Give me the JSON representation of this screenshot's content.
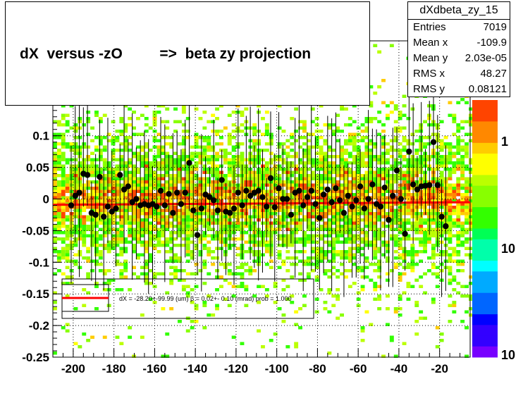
{
  "title": "dX  versus -zO         =>  beta zy projection",
  "stats": {
    "name": "dXdbeta_zy_15",
    "rows": [
      {
        "label": "Entries",
        "value": "7019"
      },
      {
        "label": "Mean x",
        "value": "-109.9"
      },
      {
        "label": "Mean y",
        "value": "2.03e-05"
      },
      {
        "label": "RMS x",
        "value": "48.27"
      },
      {
        "label": "RMS y",
        "value": "0.08121"
      }
    ]
  },
  "legend": {
    "text": "dX = -28.20+-99.99 (um) β =    0.02+- 0.10 (mrad) prob = 1.000"
  },
  "colors": {
    "points": "#000000",
    "fit_line": "#ff0000",
    "grid": "#000000",
    "palette": [
      "#7700ff",
      "#3300ff",
      "#0000ff",
      "#0066ff",
      "#00aaff",
      "#00ffff",
      "#00ffaa",
      "#00ff55",
      "#33ff00",
      "#88ff00",
      "#bbff00",
      "#ffff00",
      "#ffcc00",
      "#ff8800",
      "#ff4400"
    ]
  },
  "chart_data": {
    "type": "scatter",
    "xlim": [
      -210,
      -5
    ],
    "ylim": [
      -0.25,
      0.25
    ],
    "xticks": [
      -200,
      -180,
      -160,
      -140,
      -120,
      -100,
      -80,
      -60,
      -40,
      -20
    ],
    "xtick_labels": [
      "-200",
      "-180",
      "-160",
      "-140",
      "-120",
      "-100",
      "-80",
      "-60",
      "-40",
      "-20"
    ],
    "yticks": [
      -0.25,
      -0.2,
      -0.15,
      -0.1,
      -0.05,
      0,
      0.05,
      0.1
    ],
    "ytick_labels": [
      "-0.25",
      "-0.2",
      "-0.15",
      "-0.1",
      "-0.05",
      "0",
      "0.05",
      "0.1"
    ],
    "z_labels": [
      {
        "value": 1,
        "label": "1"
      },
      {
        "value": 0.1,
        "label": "10"
      },
      {
        "value": 0.01,
        "label": "10"
      }
    ],
    "grid": true,
    "profile_points": [
      [
        -201,
        -0.01
      ],
      [
        -199,
        0.005
      ],
      [
        -197,
        0.01
      ],
      [
        -195,
        0.04
      ],
      [
        -193,
        0.038
      ],
      [
        -191,
        -0.022
      ],
      [
        -189,
        -0.025
      ],
      [
        -187,
        0.035
      ],
      [
        -185,
        -0.028
      ],
      [
        -183,
        -0.012
      ],
      [
        -181,
        -0.02
      ],
      [
        -179,
        -0.015
      ],
      [
        -177,
        0.038
      ],
      [
        -175,
        0.015
      ],
      [
        -173,
        0.02
      ],
      [
        -171,
        -0.005
      ],
      [
        -169,
        0.0
      ],
      [
        -167,
        -0.01
      ],
      [
        -165,
        -0.008
      ],
      [
        -163,
        -0.01
      ],
      [
        -161,
        -0.008
      ],
      [
        -159,
        -0.012
      ],
      [
        -157,
        0.013
      ],
      [
        -155,
        -0.01
      ],
      [
        -153,
        0.008
      ],
      [
        -151,
        -0.022
      ],
      [
        -149,
        0.01
      ],
      [
        -147,
        -0.008
      ],
      [
        -145,
        0.01
      ],
      [
        -143,
        0.057
      ],
      [
        -141,
        -0.018
      ],
      [
        -139,
        -0.057
      ],
      [
        -137,
        -0.015
      ],
      [
        -135,
        0.007
      ],
      [
        -133,
        0.003
      ],
      [
        -131,
        -0.002
      ],
      [
        -129,
        -0.018
      ],
      [
        -127,
        0.03
      ],
      [
        -125,
        -0.02
      ],
      [
        -123,
        -0.022
      ],
      [
        -121,
        -0.015
      ],
      [
        -119,
        0.01
      ],
      [
        -117,
        -0.01
      ],
      [
        -115,
        0.013
      ],
      [
        -113,
        0.005
      ],
      [
        -111,
        0.01
      ],
      [
        -109,
        0.013
      ],
      [
        -107,
        0.003
      ],
      [
        -105,
        -0.012
      ],
      [
        -103,
        0.033
      ],
      [
        -101,
        -0.013
      ],
      [
        -99,
        0.017
      ],
      [
        -97,
        0.0
      ],
      [
        -95,
        0.0
      ],
      [
        -93,
        -0.025
      ],
      [
        -91,
        0.01
      ],
      [
        -89,
        0.013
      ],
      [
        -87,
        -0.01
      ],
      [
        -85,
        0.003
      ],
      [
        -83,
        0.013
      ],
      [
        -81,
        -0.008
      ],
      [
        -79,
        -0.03
      ],
      [
        -77,
        0.007
      ],
      [
        -75,
        0.015
      ],
      [
        -73,
        -0.005
      ],
      [
        -71,
        0.017
      ],
      [
        -69,
        -0.002
      ],
      [
        -67,
        -0.022
      ],
      [
        -65,
        0.005
      ],
      [
        -63,
        -0.012
      ],
      [
        -61,
        -0.002
      ],
      [
        -59,
        0.02
      ],
      [
        -57,
        -0.015
      ],
      [
        -55,
        0.0
      ],
      [
        -53,
        0.023
      ],
      [
        -51,
        -0.008
      ],
      [
        -49,
        -0.012
      ],
      [
        -47,
        0.018
      ],
      [
        -45,
        -0.033
      ],
      [
        -43,
        0.005
      ],
      [
        -41,
        0.045
      ],
      [
        -39,
        0.0
      ],
      [
        -37,
        -0.055
      ],
      [
        -35,
        0.075
      ],
      [
        -33,
        0.023
      ],
      [
        -31,
        0.015
      ],
      [
        -29,
        0.02
      ],
      [
        -27,
        0.021
      ],
      [
        -25,
        0.022
      ],
      [
        -23,
        0.09
      ],
      [
        -21,
        0.022
      ],
      [
        -19,
        -0.028
      ],
      [
        -17,
        -0.043
      ]
    ],
    "fit": {
      "type": "line",
      "intercept": -0.005,
      "slope": 2e-05,
      "x_from": -210,
      "x_to": -5
    }
  }
}
